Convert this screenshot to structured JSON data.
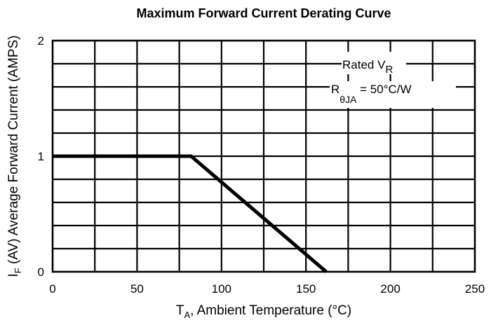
{
  "chart_data": {
    "type": "line",
    "title": "Maximum Forward Current Derating Curve",
    "xlabel": {
      "main": "T",
      "sub": "A",
      "rest": ", Ambient Temperature (°C)"
    },
    "ylabel": {
      "main": "I",
      "sub": "F",
      "rest": " (AV) Average Forward Current (AMPS)"
    },
    "xlim": [
      0,
      250
    ],
    "ylim": [
      0,
      2
    ],
    "x_ticks": [
      0,
      50,
      100,
      150,
      200,
      250
    ],
    "x_tick_labels": [
      "0",
      "50",
      "100",
      "150",
      "200",
      "250"
    ],
    "y_ticks": [
      0,
      1,
      2
    ],
    "y_tick_labels": [
      "0",
      "1",
      "2"
    ],
    "x_grid_step": 25,
    "y_grid_step": 0.2,
    "grid": true,
    "series": [
      {
        "x": [
          0,
          82,
          162
        ],
        "y": [
          1,
          1,
          0
        ]
      }
    ],
    "annotations": [
      {
        "main": "Rated V",
        "sub": "R"
      },
      {
        "main": "R",
        "sub": "θJA",
        "rest": " = 50°C/W"
      }
    ]
  }
}
